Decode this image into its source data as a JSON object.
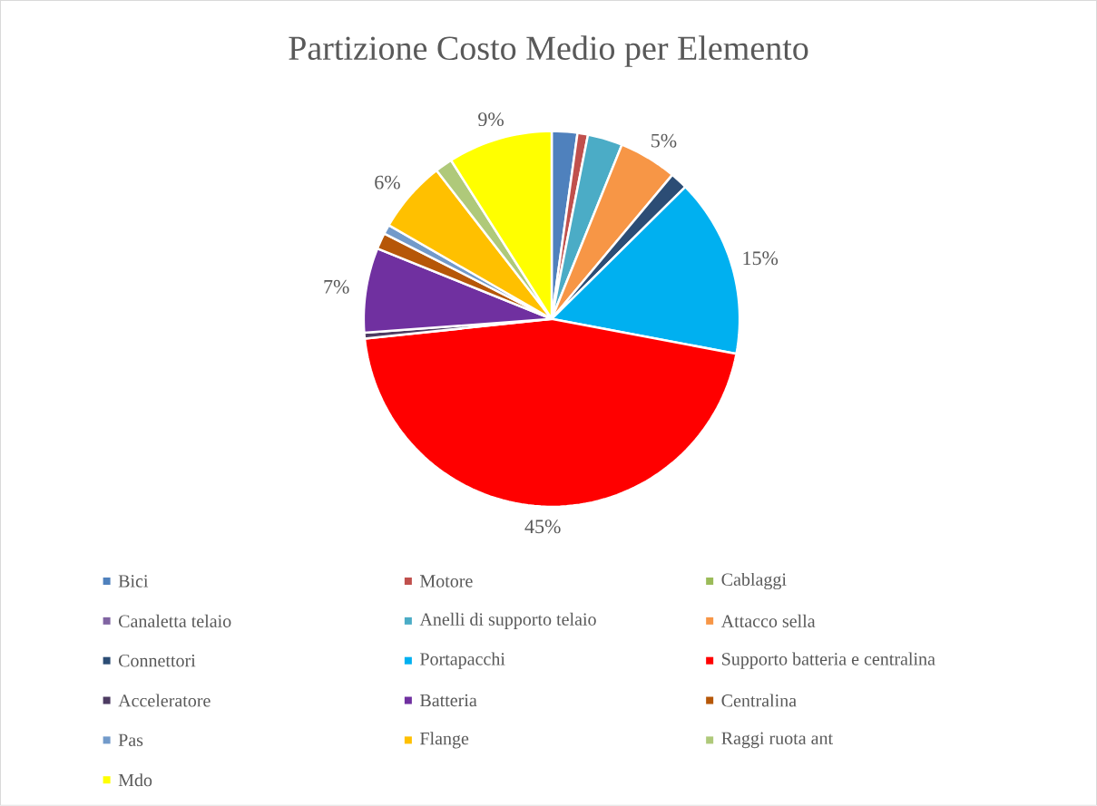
{
  "chart_data": {
    "type": "pie",
    "title": "Partizione Costo Medio per Elemento",
    "categories": [
      "Bici",
      "Motore",
      "Cablaggi",
      "Canaletta telaio",
      "Anelli di supporto telaio",
      "Attacco sella",
      "Connettori",
      "Portapacchi",
      "Supporto batteria e centralina",
      "Acceleratore",
      "Batteria",
      "Centralina",
      "Pas",
      "Flange",
      "Raggi ruota ant",
      "Mdo"
    ],
    "values": [
      2.2,
      0.9,
      0,
      0,
      3.0,
      5.0,
      1.5,
      15.4,
      45.4,
      0.5,
      7.3,
      1.4,
      0.8,
      6.2,
      1.5,
      9.0
    ],
    "colors": [
      "#4f81bd",
      "#c0504d",
      "#9bbb59",
      "#8064a2",
      "#4bacc6",
      "#f79646",
      "#2c4d75",
      "#00b0f0",
      "#ff0000",
      "#4d3b62",
      "#7030a0",
      "#b65708",
      "#729aca",
      "#ffc000",
      "#afc97a",
      "#ffff00"
    ],
    "value_labels": [
      null,
      null,
      null,
      null,
      null,
      "5%",
      null,
      "15%",
      "45%",
      null,
      "7%",
      null,
      null,
      "6%",
      null,
      "9%"
    ],
    "legend": "bottom"
  }
}
